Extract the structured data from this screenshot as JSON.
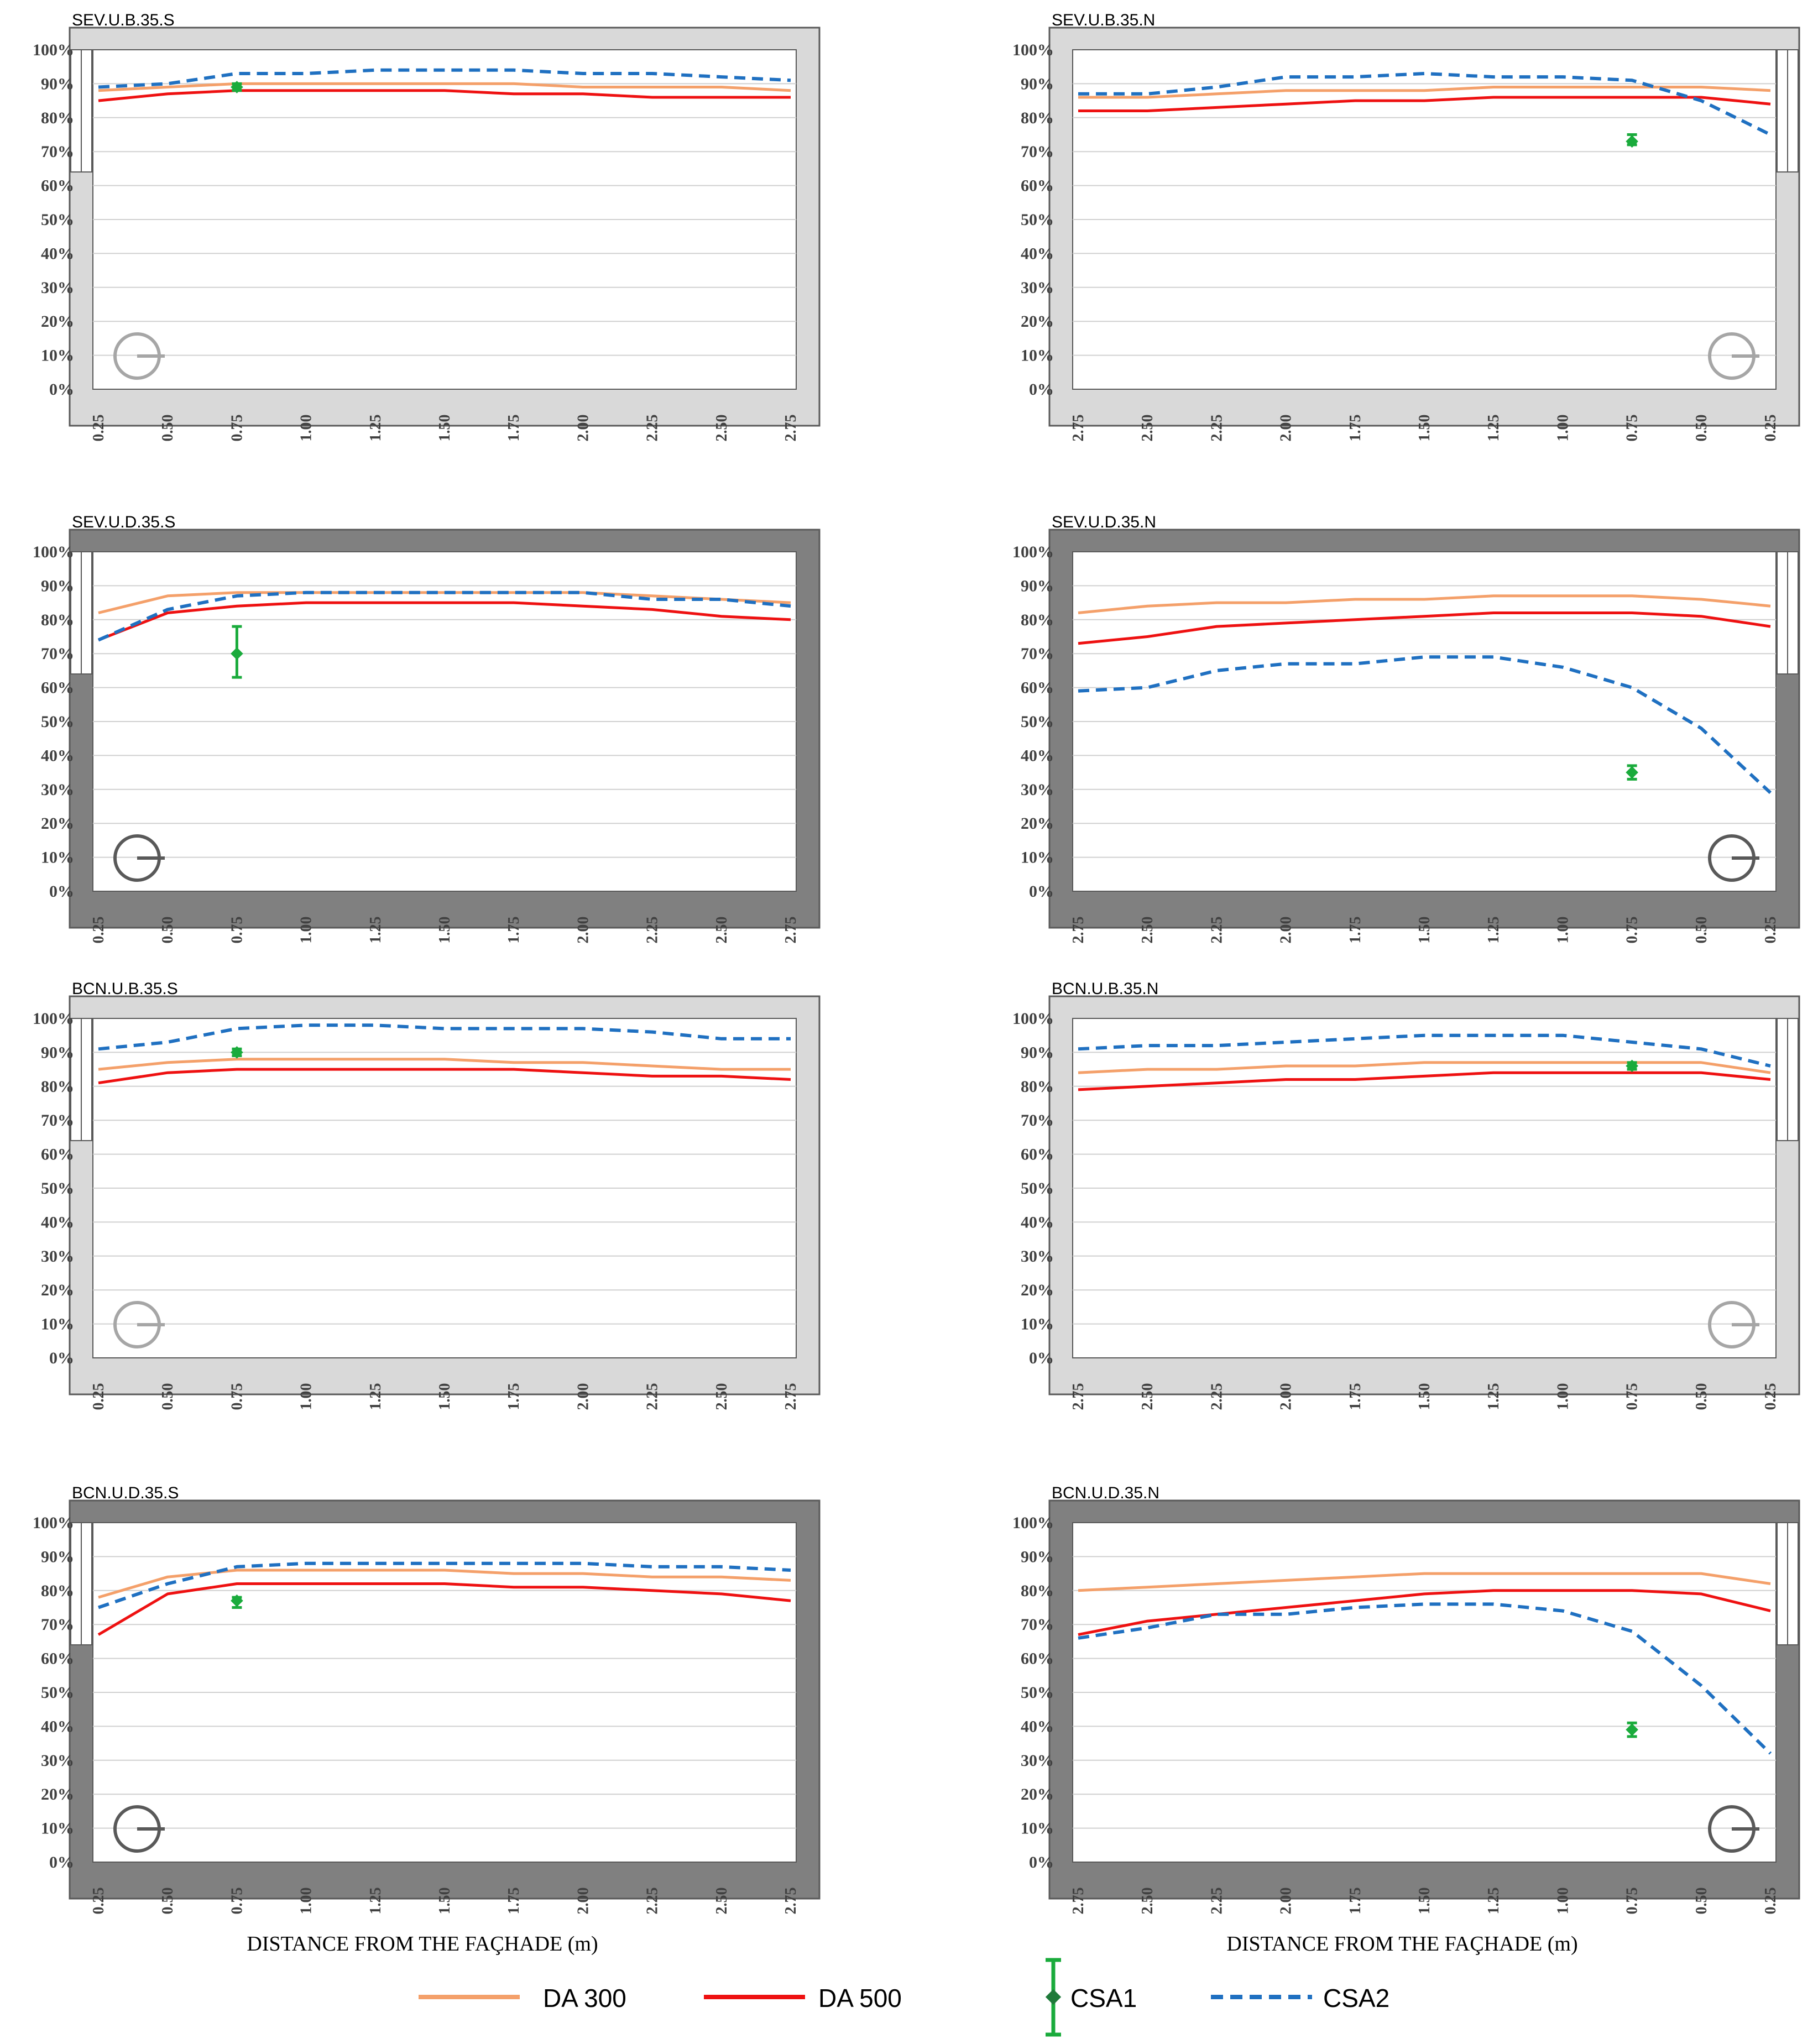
{
  "colors": {
    "da300": "#f4a06a",
    "da500": "#ee1111",
    "csa1": "#1aab3c",
    "csa2": "#1f70c1",
    "light_frame": "#d9d9d9",
    "dark_frame": "#808080",
    "frame_stroke": "#595959",
    "grid": "#d0d0d0",
    "compass_light": "#a6a6a6",
    "compass_dark": "#595959"
  },
  "axis_title": "DISTANCE FROM THE FAÇHADE (m)",
  "legend": {
    "da300": "DA 300",
    "da500": "DA 500",
    "csa1": "CSA1",
    "csa2": "CSA2"
  },
  "chart_data": [
    {
      "type": "line",
      "title": "SEV.U.B.35.S",
      "frame": "light",
      "orientation": "S",
      "xlabel": "",
      "x": [
        0.25,
        0.5,
        0.75,
        1.0,
        1.25,
        1.5,
        1.75,
        2.0,
        2.25,
        2.5,
        2.75
      ],
      "x_tick_labels": [
        "0.25",
        "0.50",
        "0.75",
        "1.00",
        "1.25",
        "1.50",
        "1.75",
        "2.00",
        "2.25",
        "2.50",
        "2.75"
      ],
      "y_tick_labels": [
        "100%",
        "90%",
        "80%",
        "70%",
        "60%",
        "50%",
        "40%",
        "30%",
        "20%",
        "10%",
        "0%"
      ],
      "ylim": [
        0,
        100
      ],
      "series": [
        {
          "name": "DA 300",
          "values": [
            88,
            89,
            90,
            90,
            90,
            90,
            90,
            89,
            89,
            89,
            88
          ]
        },
        {
          "name": "DA 500",
          "values": [
            85,
            87,
            88,
            88,
            88,
            88,
            87,
            87,
            86,
            86,
            86
          ]
        },
        {
          "name": "CSA2",
          "values": [
            89,
            90,
            93,
            93,
            94,
            94,
            94,
            93,
            93,
            92,
            91
          ]
        }
      ],
      "csa1": {
        "x": 0.75,
        "y": 89,
        "low": 88,
        "high": 90
      }
    },
    {
      "type": "line",
      "title": "SEV.U.B.35.N",
      "frame": "light",
      "orientation": "N",
      "xlabel": "",
      "x": [
        2.75,
        2.5,
        2.25,
        2.0,
        1.75,
        1.5,
        1.25,
        1.0,
        0.75,
        0.5,
        0.25
      ],
      "x_tick_labels": [
        "2.75",
        "2.50",
        "2.25",
        "2.00",
        "1.75",
        "1.50",
        "1.25",
        "1.00",
        "0.75",
        "0.50",
        "0.25"
      ],
      "y_tick_labels": [
        "100%",
        "90%",
        "80%",
        "70%",
        "60%",
        "50%",
        "40%",
        "30%",
        "20%",
        "10%",
        "0%"
      ],
      "ylim": [
        0,
        100
      ],
      "series": [
        {
          "name": "DA 300",
          "values": [
            86,
            86,
            87,
            88,
            88,
            88,
            89,
            89,
            89,
            89,
            88
          ]
        },
        {
          "name": "DA 500",
          "values": [
            82,
            82,
            83,
            84,
            85,
            85,
            86,
            86,
            86,
            86,
            84
          ]
        },
        {
          "name": "CSA2",
          "values": [
            87,
            87,
            89,
            92,
            92,
            93,
            92,
            92,
            91,
            85,
            75
          ]
        }
      ],
      "csa1": {
        "x": 0.75,
        "y": 73,
        "low": 72,
        "high": 75
      }
    },
    {
      "type": "line",
      "title": "SEV.U.D.35.S",
      "frame": "dark",
      "orientation": "S",
      "xlabel": "",
      "x": [
        0.25,
        0.5,
        0.75,
        1.0,
        1.25,
        1.5,
        1.75,
        2.0,
        2.25,
        2.5,
        2.75
      ],
      "x_tick_labels": [
        "0.25",
        "0.50",
        "0.75",
        "1.00",
        "1.25",
        "1.50",
        "1.75",
        "2.00",
        "2.25",
        "2.50",
        "2.75"
      ],
      "y_tick_labels": [
        "100%",
        "90%",
        "80%",
        "70%",
        "60%",
        "50%",
        "40%",
        "30%",
        "20%",
        "10%",
        "0%"
      ],
      "ylim": [
        0,
        100
      ],
      "series": [
        {
          "name": "DA 300",
          "values": [
            82,
            87,
            88,
            88,
            88,
            88,
            88,
            88,
            87,
            86,
            85
          ]
        },
        {
          "name": "DA 500",
          "values": [
            74,
            82,
            84,
            85,
            85,
            85,
            85,
            84,
            83,
            81,
            80
          ]
        },
        {
          "name": "CSA2",
          "values": [
            74,
            83,
            87,
            88,
            88,
            88,
            88,
            88,
            86,
            86,
            84
          ]
        }
      ],
      "csa1": {
        "x": 0.75,
        "y": 70,
        "low": 63,
        "high": 78
      }
    },
    {
      "type": "line",
      "title": "SEV.U.D.35.N",
      "frame": "dark",
      "orientation": "N",
      "xlabel": "",
      "x": [
        2.75,
        2.5,
        2.25,
        2.0,
        1.75,
        1.5,
        1.25,
        1.0,
        0.75,
        0.5,
        0.25
      ],
      "x_tick_labels": [
        "2.75",
        "2.50",
        "2.25",
        "2.00",
        "1.75",
        "1.50",
        "1.25",
        "1.00",
        "0.75",
        "0.50",
        "0.25"
      ],
      "y_tick_labels": [
        "100%",
        "90%",
        "80%",
        "70%",
        "60%",
        "50%",
        "40%",
        "30%",
        "20%",
        "10%",
        "0%"
      ],
      "ylim": [
        0,
        100
      ],
      "series": [
        {
          "name": "DA 300",
          "values": [
            82,
            84,
            85,
            85,
            86,
            86,
            87,
            87,
            87,
            86,
            84
          ]
        },
        {
          "name": "DA 500",
          "values": [
            73,
            75,
            78,
            79,
            80,
            81,
            82,
            82,
            82,
            81,
            78
          ]
        },
        {
          "name": "CSA2",
          "values": [
            59,
            60,
            65,
            67,
            67,
            69,
            69,
            66,
            60,
            48,
            29
          ]
        }
      ],
      "csa1": {
        "x": 0.75,
        "y": 35,
        "low": 33,
        "high": 37
      }
    },
    {
      "type": "line",
      "title": "BCN.U.B.35.S",
      "frame": "light",
      "orientation": "S",
      "xlabel": "",
      "x": [
        0.25,
        0.5,
        0.75,
        1.0,
        1.25,
        1.5,
        1.75,
        2.0,
        2.25,
        2.5,
        2.75
      ],
      "x_tick_labels": [
        "0.25",
        "0.50",
        "0.75",
        "1.00",
        "1.25",
        "1.50",
        "1.75",
        "2.00",
        "2.25",
        "2.50",
        "2.75"
      ],
      "y_tick_labels": [
        "100%",
        "90%",
        "80%",
        "70%",
        "60%",
        "50%",
        "40%",
        "30%",
        "20%",
        "10%",
        "0%"
      ],
      "ylim": [
        0,
        100
      ],
      "series": [
        {
          "name": "DA 300",
          "values": [
            85,
            87,
            88,
            88,
            88,
            88,
            87,
            87,
            86,
            85,
            85
          ]
        },
        {
          "name": "DA 500",
          "values": [
            81,
            84,
            85,
            85,
            85,
            85,
            85,
            84,
            83,
            83,
            82
          ]
        },
        {
          "name": "CSA2",
          "values": [
            91,
            93,
            97,
            98,
            98,
            97,
            97,
            97,
            96,
            94,
            94
          ]
        }
      ],
      "csa1": {
        "x": 0.75,
        "y": 90,
        "low": 89,
        "high": 91
      }
    },
    {
      "type": "line",
      "title": "BCN.U.B.35.N",
      "frame": "light",
      "orientation": "N",
      "xlabel": "",
      "x": [
        2.75,
        2.5,
        2.25,
        2.0,
        1.75,
        1.5,
        1.25,
        1.0,
        0.75,
        0.5,
        0.25
      ],
      "x_tick_labels": [
        "2.75",
        "2.50",
        "2.25",
        "2.00",
        "1.75",
        "1.50",
        "1.25",
        "1.00",
        "0.75",
        "0.50",
        "0.25"
      ],
      "y_tick_labels": [
        "100%",
        "90%",
        "80%",
        "70%",
        "60%",
        "50%",
        "40%",
        "30%",
        "20%",
        "10%",
        "0%"
      ],
      "ylim": [
        0,
        100
      ],
      "series": [
        {
          "name": "DA 300",
          "values": [
            84,
            85,
            85,
            86,
            86,
            87,
            87,
            87,
            87,
            87,
            84
          ]
        },
        {
          "name": "DA 500",
          "values": [
            79,
            80,
            81,
            82,
            82,
            83,
            84,
            84,
            84,
            84,
            82
          ]
        },
        {
          "name": "CSA2",
          "values": [
            91,
            92,
            92,
            93,
            94,
            95,
            95,
            95,
            93,
            91,
            86
          ]
        }
      ],
      "csa1": {
        "x": 0.75,
        "y": 86,
        "low": 85,
        "high": 87
      }
    },
    {
      "type": "line",
      "title": "BCN.U.D.35.S",
      "frame": "dark",
      "orientation": "S",
      "xlabel": "DISTANCE FROM THE FAÇHADE (m)",
      "x": [
        0.25,
        0.5,
        0.75,
        1.0,
        1.25,
        1.5,
        1.75,
        2.0,
        2.25,
        2.5,
        2.75
      ],
      "x_tick_labels": [
        "0.25",
        "0.50",
        "0.75",
        "1.00",
        "1.25",
        "1.50",
        "1.75",
        "2.00",
        "2.25",
        "2.50",
        "2.75"
      ],
      "y_tick_labels": [
        "100%",
        "90%",
        "80%",
        "70%",
        "60%",
        "50%",
        "40%",
        "30%",
        "20%",
        "10%",
        "0%"
      ],
      "ylim": [
        0,
        100
      ],
      "series": [
        {
          "name": "DA 300",
          "values": [
            78,
            84,
            86,
            86,
            86,
            86,
            85,
            85,
            84,
            84,
            83
          ]
        },
        {
          "name": "DA 500",
          "values": [
            67,
            79,
            82,
            82,
            82,
            82,
            81,
            81,
            80,
            79,
            77
          ]
        },
        {
          "name": "CSA2",
          "values": [
            75,
            82,
            87,
            88,
            88,
            88,
            88,
            88,
            87,
            87,
            86
          ]
        }
      ],
      "csa1": {
        "x": 0.75,
        "y": 77,
        "low": 75,
        "high": 78
      }
    },
    {
      "type": "line",
      "title": "BCN.U.D.35.N",
      "frame": "dark",
      "orientation": "N",
      "xlabel": "DISTANCE FROM THE FAÇHADE (m)",
      "x": [
        2.75,
        2.5,
        2.25,
        2.0,
        1.75,
        1.5,
        1.25,
        1.0,
        0.75,
        0.5,
        0.25
      ],
      "x_tick_labels": [
        "2.75",
        "2.50",
        "2.25",
        "2.00",
        "1.75",
        "1.50",
        "1.25",
        "1.00",
        "0.75",
        "0.50",
        "0.25"
      ],
      "y_tick_labels": [
        "100%",
        "90%",
        "80%",
        "70%",
        "60%",
        "50%",
        "40%",
        "30%",
        "20%",
        "10%",
        "0%"
      ],
      "ylim": [
        0,
        100
      ],
      "series": [
        {
          "name": "DA 300",
          "values": [
            80,
            81,
            82,
            83,
            84,
            85,
            85,
            85,
            85,
            85,
            82
          ]
        },
        {
          "name": "DA 500",
          "values": [
            67,
            71,
            73,
            75,
            77,
            79,
            80,
            80,
            80,
            79,
            74
          ]
        },
        {
          "name": "CSA2",
          "values": [
            66,
            69,
            73,
            73,
            75,
            76,
            76,
            74,
            68,
            52,
            32
          ]
        }
      ],
      "csa1": {
        "x": 0.75,
        "y": 39,
        "low": 37,
        "high": 41
      }
    }
  ]
}
